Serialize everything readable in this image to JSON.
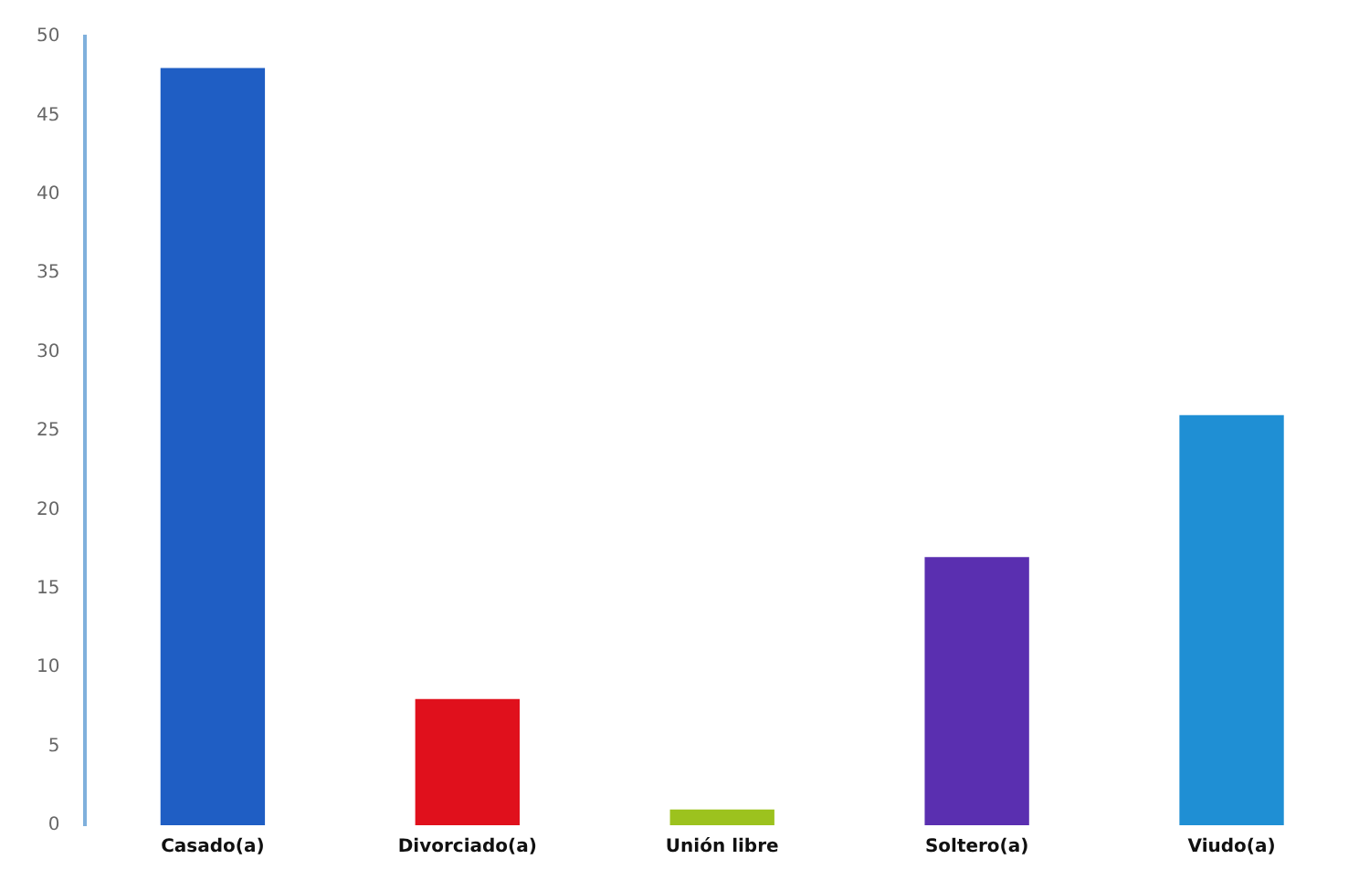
{
  "chart_data": {
    "type": "bar",
    "categories": [
      "Casado(a)",
      "Divorciado(a)",
      "Unión libre",
      "Soltero(a)",
      "Viudo(a)"
    ],
    "values": [
      48,
      8,
      1,
      17,
      26
    ],
    "colors": [
      "#1f5ec4",
      "#e0101c",
      "#9cc21e",
      "#5a2fb0",
      "#1f8fd4"
    ],
    "ylim": [
      0,
      50
    ],
    "yticks": [
      0,
      5,
      10,
      15,
      20,
      25,
      30,
      35,
      40,
      45,
      50
    ]
  }
}
